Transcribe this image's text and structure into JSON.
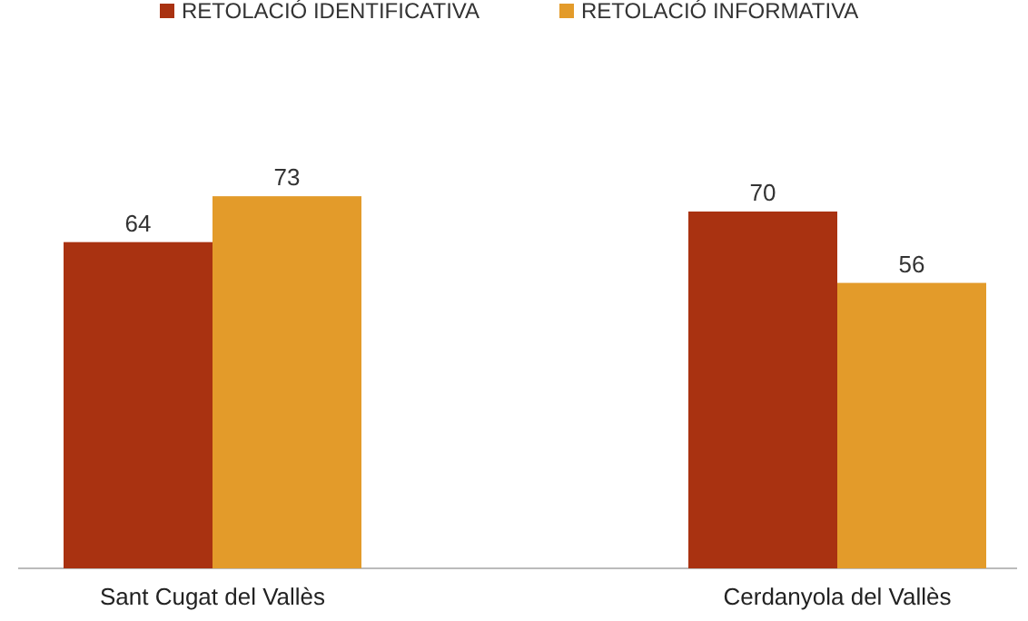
{
  "chart_data": {
    "type": "bar",
    "categories": [
      "Sant Cugat del Vallès",
      "Cerdanyola del Vallès"
    ],
    "series": [
      {
        "name": "RETOLACIÓ IDENTIFICATIVA",
        "color": "#a93211",
        "values": [
          64,
          70
        ]
      },
      {
        "name": "RETOLACIÓ INFORMATIVA",
        "color": "#e39b2a",
        "values": [
          73,
          56
        ]
      }
    ],
    "data_labels": true,
    "legend": "top"
  }
}
